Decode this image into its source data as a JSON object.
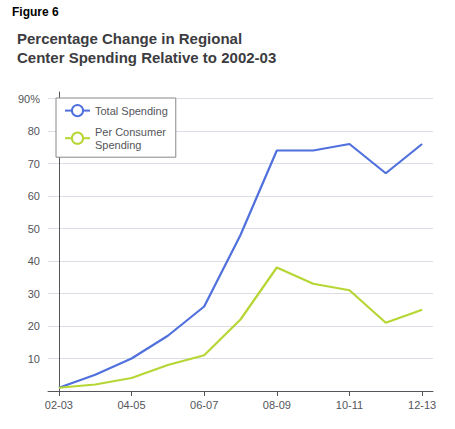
{
  "chart_data": {
    "type": "line",
    "title": "Percentage Change in Regional\nCenter Spending Relative to 2002-03",
    "annotations": [
      "Figure 6"
    ],
    "series": [
      {
        "name": "Total Spending",
        "x": [
          0,
          1,
          2,
          3,
          4,
          5,
          6,
          7,
          8,
          9,
          10
        ],
        "values": [
          1,
          5,
          10,
          17,
          26,
          48,
          74,
          74,
          76,
          67,
          76
        ]
      },
      {
        "name": "Per Consumer\nSpending",
        "x": [
          0,
          1,
          2,
          3,
          4,
          5,
          6,
          7,
          8,
          9,
          10
        ],
        "values": [
          1,
          2,
          4,
          8,
          11,
          22,
          38,
          33,
          31,
          21,
          25
        ]
      }
    ],
    "xlim": [
      -0.3,
      10.3
    ],
    "xticks": [
      {
        "value": 0,
        "label": "02-03"
      },
      {
        "value": 2,
        "label": "04-05"
      },
      {
        "value": 4,
        "label": "06-07"
      },
      {
        "value": 6,
        "label": "08-09"
      },
      {
        "value": 8,
        "label": "10-11"
      },
      {
        "value": 10,
        "label": "12-13"
      }
    ],
    "ylim": [
      0,
      92
    ],
    "yticks": [
      10,
      20,
      30,
      40,
      50,
      60,
      70,
      80,
      {
        "value": 90,
        "label": "90%"
      }
    ],
    "grid": true,
    "legend": "upper left"
  }
}
